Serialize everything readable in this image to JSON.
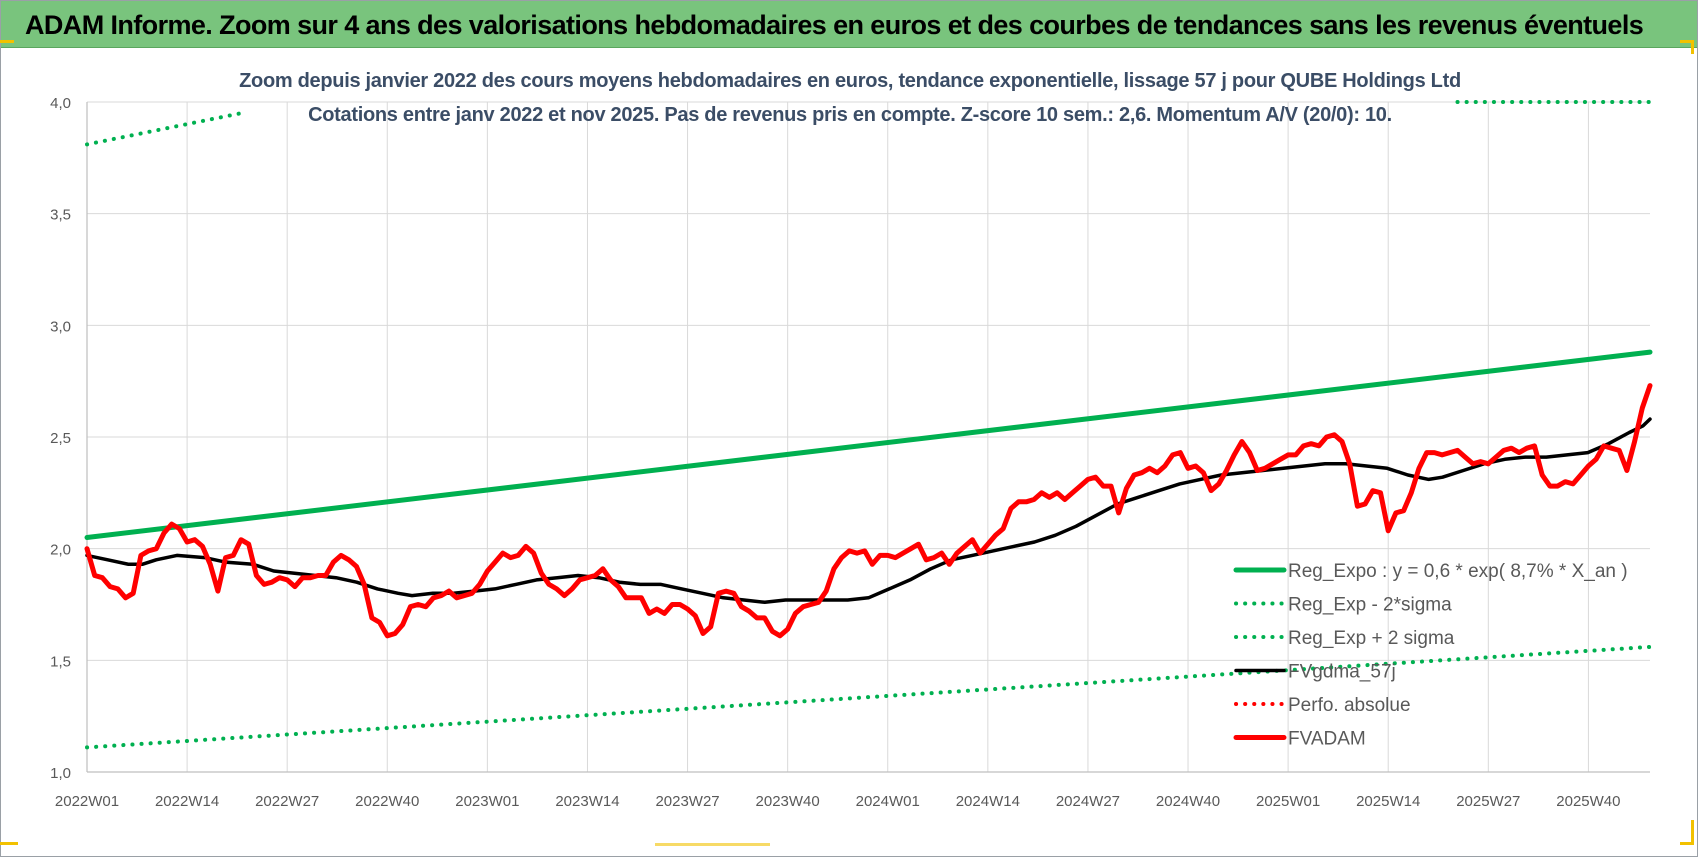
{
  "header": {
    "title": "ADAM Informe. Zoom sur 4 ans des valorisations hebdomadaires en euros et des courbes de tendances sans les revenus éventuels"
  },
  "colors": {
    "header_bg": "#79c47d",
    "reg_expo": "#00b050",
    "fvgdma": "#000000",
    "fvadam": "#ff0000",
    "perfo": "#ff0000",
    "subtitle": "#3b4d66"
  },
  "chart_data": {
    "type": "line",
    "title": "Zoom depuis janvier 2022 des cours moyens hebdomadaires en euros, tendance exponentielle, lissage 57 j pour QUBE Holdings Ltd",
    "subtitle": "Cotations entre janv 2022 et nov 2025. Pas de revenus pris en compte. Z-score 10 sem.: 2,6. Momentum A/V (20/0): 10.",
    "xlabel": "",
    "ylabel": "",
    "ylim": [
      1.0,
      4.0
    ],
    "yticks": [
      "1,0",
      "1,5",
      "2,0",
      "2,5",
      "3,0",
      "3,5",
      "4,0"
    ],
    "xticks": [
      "2022W01",
      "2022W14",
      "2022W27",
      "2022W40",
      "2023W01",
      "2023W14",
      "2023W27",
      "2023W40",
      "2024W01",
      "2024W14",
      "2024W27",
      "2024W40",
      "2025W01",
      "2025W14",
      "2025W27",
      "2025W40"
    ],
    "x_weeks_total": 204,
    "grid": true,
    "legend_position": "right",
    "series": [
      {
        "name": "Reg_Expo : y = 0,6 * exp( 8,7% *  X_an )",
        "style": "solid-thick",
        "color": "#00b050",
        "points": [
          [
            0,
            2.05
          ],
          [
            203,
            2.88
          ]
        ]
      },
      {
        "name": "Reg_Exp - 2*sigma",
        "style": "dotted",
        "color": "#00b050",
        "points": [
          [
            0,
            1.11
          ],
          [
            203,
            1.56
          ]
        ]
      },
      {
        "name": "Reg_Exp + 2 sigma",
        "style": "dotted",
        "color": "#00b050",
        "points": [
          [
            0,
            3.81
          ],
          [
            20,
            3.95
          ]
        ],
        "points2": [
          [
            178,
            4.0
          ],
          [
            203,
            4.0
          ]
        ]
      },
      {
        "name": "FVgdma_57j",
        "style": "solid",
        "color": "#000000",
        "points": [
          [
            0,
            1.97
          ],
          [
            3,
            1.95
          ],
          [
            6,
            1.93
          ],
          [
            8,
            1.93
          ],
          [
            10,
            1.95
          ],
          [
            13,
            1.97
          ],
          [
            17,
            1.96
          ],
          [
            20,
            1.94
          ],
          [
            24,
            1.93
          ],
          [
            27,
            1.9
          ],
          [
            30,
            1.89
          ],
          [
            33,
            1.88
          ],
          [
            36,
            1.87
          ],
          [
            39,
            1.85
          ],
          [
            42,
            1.82
          ],
          [
            45,
            1.8
          ],
          [
            47,
            1.79
          ],
          [
            50,
            1.8
          ],
          [
            53,
            1.8
          ],
          [
            56,
            1.81
          ],
          [
            59,
            1.82
          ],
          [
            62,
            1.84
          ],
          [
            65,
            1.86
          ],
          [
            68,
            1.87
          ],
          [
            71,
            1.88
          ],
          [
            74,
            1.87
          ],
          [
            77,
            1.85
          ],
          [
            80,
            1.84
          ],
          [
            83,
            1.84
          ],
          [
            86,
            1.82
          ],
          [
            89,
            1.8
          ],
          [
            92,
            1.78
          ],
          [
            95,
            1.77
          ],
          [
            98,
            1.76
          ],
          [
            101,
            1.77
          ],
          [
            104,
            1.77
          ],
          [
            107,
            1.77
          ],
          [
            110,
            1.77
          ],
          [
            113,
            1.78
          ],
          [
            116,
            1.82
          ],
          [
            119,
            1.86
          ],
          [
            122,
            1.91
          ],
          [
            125,
            1.95
          ],
          [
            128,
            1.97
          ],
          [
            131,
            1.99
          ],
          [
            134,
            2.01
          ],
          [
            137,
            2.03
          ],
          [
            140,
            2.06
          ],
          [
            143,
            2.1
          ],
          [
            146,
            2.15
          ],
          [
            149,
            2.2
          ],
          [
            152,
            2.23
          ],
          [
            155,
            2.26
          ],
          [
            158,
            2.29
          ],
          [
            161,
            2.31
          ],
          [
            164,
            2.33
          ],
          [
            167,
            2.34
          ],
          [
            170,
            2.35
          ],
          [
            173,
            2.36
          ],
          [
            176,
            2.37
          ],
          [
            179,
            2.38
          ],
          [
            182,
            2.38
          ],
          [
            185,
            2.37
          ],
          [
            188,
            2.36
          ],
          [
            191,
            2.33
          ],
          [
            194,
            2.31
          ],
          [
            196,
            2.32
          ],
          [
            199,
            2.35
          ],
          [
            202,
            2.38
          ],
          [
            205,
            2.4
          ],
          [
            208,
            2.41
          ],
          [
            211,
            2.41
          ],
          [
            214,
            2.42
          ],
          [
            217,
            2.43
          ],
          [
            220,
            2.47
          ],
          [
            223,
            2.52
          ],
          [
            225,
            2.55
          ],
          [
            226,
            2.58
          ]
        ]
      },
      {
        "name": "Perfo. absolue",
        "style": "dotted",
        "color": "#ff0000",
        "points": []
      },
      {
        "name": "FVADAM",
        "style": "solid-thick",
        "color": "#ff0000",
        "points": [
          [
            0,
            2.0
          ],
          [
            1,
            1.88
          ],
          [
            2,
            1.87
          ],
          [
            3,
            1.83
          ],
          [
            4,
            1.82
          ],
          [
            5,
            1.78
          ],
          [
            6,
            1.8
          ],
          [
            7,
            1.97
          ],
          [
            8,
            1.99
          ],
          [
            9,
            2.0
          ],
          [
            10,
            2.07
          ],
          [
            11,
            2.11
          ],
          [
            12,
            2.09
          ],
          [
            13,
            2.03
          ],
          [
            14,
            2.04
          ],
          [
            15,
            2.01
          ],
          [
            16,
            1.93
          ],
          [
            17,
            1.81
          ],
          [
            18,
            1.96
          ],
          [
            19,
            1.97
          ],
          [
            20,
            2.04
          ],
          [
            21,
            2.02
          ],
          [
            22,
            1.88
          ],
          [
            23,
            1.84
          ],
          [
            24,
            1.85
          ],
          [
            25,
            1.87
          ],
          [
            26,
            1.86
          ],
          [
            27,
            1.83
          ],
          [
            28,
            1.87
          ],
          [
            29,
            1.87
          ],
          [
            30,
            1.88
          ],
          [
            31,
            1.88
          ],
          [
            32,
            1.94
          ],
          [
            33,
            1.97
          ],
          [
            34,
            1.95
          ],
          [
            35,
            1.92
          ],
          [
            36,
            1.84
          ],
          [
            37,
            1.69
          ],
          [
            38,
            1.67
          ],
          [
            39,
            1.61
          ],
          [
            40,
            1.62
          ],
          [
            41,
            1.66
          ],
          [
            42,
            1.74
          ],
          [
            43,
            1.75
          ],
          [
            44,
            1.74
          ],
          [
            45,
            1.78
          ],
          [
            46,
            1.79
          ],
          [
            47,
            1.81
          ],
          [
            48,
            1.78
          ],
          [
            49,
            1.79
          ],
          [
            50,
            1.8
          ],
          [
            51,
            1.84
          ],
          [
            52,
            1.9
          ],
          [
            53,
            1.94
          ],
          [
            54,
            1.98
          ],
          [
            55,
            1.96
          ],
          [
            56,
            1.97
          ],
          [
            57,
            2.01
          ],
          [
            58,
            1.98
          ],
          [
            59,
            1.89
          ],
          [
            60,
            1.84
          ],
          [
            61,
            1.82
          ],
          [
            62,
            1.79
          ],
          [
            63,
            1.82
          ],
          [
            64,
            1.86
          ],
          [
            65,
            1.87
          ],
          [
            66,
            1.88
          ],
          [
            67,
            1.91
          ],
          [
            68,
            1.86
          ],
          [
            69,
            1.83
          ],
          [
            70,
            1.78
          ],
          [
            71,
            1.78
          ],
          [
            72,
            1.78
          ],
          [
            73,
            1.71
          ],
          [
            74,
            1.73
          ],
          [
            75,
            1.71
          ],
          [
            76,
            1.75
          ],
          [
            77,
            1.75
          ],
          [
            78,
            1.73
          ],
          [
            79,
            1.7
          ],
          [
            80,
            1.62
          ],
          [
            81,
            1.65
          ],
          [
            82,
            1.8
          ],
          [
            83,
            1.81
          ],
          [
            84,
            1.8
          ],
          [
            85,
            1.74
          ],
          [
            86,
            1.72
          ],
          [
            87,
            1.69
          ],
          [
            88,
            1.69
          ],
          [
            89,
            1.63
          ],
          [
            90,
            1.61
          ],
          [
            91,
            1.64
          ],
          [
            92,
            1.71
          ],
          [
            93,
            1.74
          ],
          [
            94,
            1.75
          ],
          [
            95,
            1.76
          ],
          [
            96,
            1.81
          ],
          [
            97,
            1.91
          ],
          [
            98,
            1.96
          ],
          [
            99,
            1.99
          ],
          [
            100,
            1.98
          ],
          [
            101,
            1.99
          ],
          [
            102,
            1.93
          ],
          [
            103,
            1.97
          ],
          [
            104,
            1.97
          ],
          [
            105,
            1.96
          ],
          [
            106,
            1.98
          ],
          [
            107,
            2.0
          ],
          [
            108,
            2.02
          ],
          [
            109,
            1.95
          ],
          [
            110,
            1.96
          ],
          [
            111,
            1.98
          ],
          [
            112,
            1.93
          ],
          [
            113,
            1.98
          ],
          [
            114,
            2.01
          ],
          [
            115,
            2.04
          ],
          [
            116,
            1.98
          ],
          [
            117,
            2.02
          ],
          [
            118,
            2.06
          ],
          [
            119,
            2.09
          ],
          [
            120,
            2.18
          ],
          [
            121,
            2.21
          ],
          [
            122,
            2.21
          ],
          [
            123,
            2.22
          ],
          [
            124,
            2.25
          ],
          [
            125,
            2.23
          ],
          [
            126,
            2.25
          ],
          [
            127,
            2.22
          ],
          [
            128,
            2.25
          ],
          [
            129,
            2.28
          ],
          [
            130,
            2.31
          ],
          [
            131,
            2.32
          ],
          [
            132,
            2.28
          ],
          [
            133,
            2.28
          ],
          [
            134,
            2.16
          ],
          [
            135,
            2.27
          ],
          [
            136,
            2.33
          ],
          [
            137,
            2.34
          ],
          [
            138,
            2.36
          ],
          [
            139,
            2.34
          ],
          [
            140,
            2.37
          ],
          [
            141,
            2.42
          ],
          [
            142,
            2.43
          ],
          [
            143,
            2.36
          ],
          [
            144,
            2.37
          ],
          [
            145,
            2.34
          ],
          [
            146,
            2.26
          ],
          [
            147,
            2.29
          ],
          [
            148,
            2.35
          ],
          [
            149,
            2.42
          ],
          [
            150,
            2.48
          ],
          [
            151,
            2.43
          ],
          [
            152,
            2.35
          ],
          [
            153,
            2.36
          ],
          [
            154,
            2.38
          ],
          [
            155,
            2.4
          ],
          [
            156,
            2.42
          ],
          [
            157,
            2.42
          ],
          [
            158,
            2.46
          ],
          [
            159,
            2.47
          ],
          [
            160,
            2.46
          ],
          [
            161,
            2.5
          ],
          [
            162,
            2.51
          ],
          [
            163,
            2.48
          ],
          [
            164,
            2.38
          ],
          [
            165,
            2.19
          ],
          [
            166,
            2.2
          ],
          [
            167,
            2.26
          ],
          [
            168,
            2.25
          ],
          [
            169,
            2.08
          ],
          [
            170,
            2.16
          ],
          [
            171,
            2.17
          ],
          [
            172,
            2.25
          ],
          [
            173,
            2.36
          ],
          [
            174,
            2.43
          ],
          [
            175,
            2.43
          ],
          [
            176,
            2.42
          ],
          [
            177,
            2.43
          ],
          [
            178,
            2.44
          ],
          [
            179,
            2.41
          ],
          [
            180,
            2.38
          ],
          [
            181,
            2.39
          ],
          [
            182,
            2.38
          ],
          [
            183,
            2.41
          ],
          [
            184,
            2.44
          ],
          [
            185,
            2.45
          ],
          [
            186,
            2.43
          ],
          [
            187,
            2.45
          ],
          [
            188,
            2.46
          ],
          [
            189,
            2.33
          ],
          [
            190,
            2.28
          ],
          [
            191,
            2.28
          ],
          [
            192,
            2.3
          ],
          [
            193,
            2.29
          ],
          [
            194,
            2.33
          ],
          [
            195,
            2.37
          ],
          [
            196,
            2.4
          ],
          [
            197,
            2.46
          ],
          [
            198,
            2.45
          ],
          [
            199,
            2.44
          ],
          [
            200,
            2.35
          ],
          [
            201,
            2.48
          ],
          [
            202,
            2.63
          ],
          [
            203,
            2.73
          ]
        ]
      }
    ]
  }
}
